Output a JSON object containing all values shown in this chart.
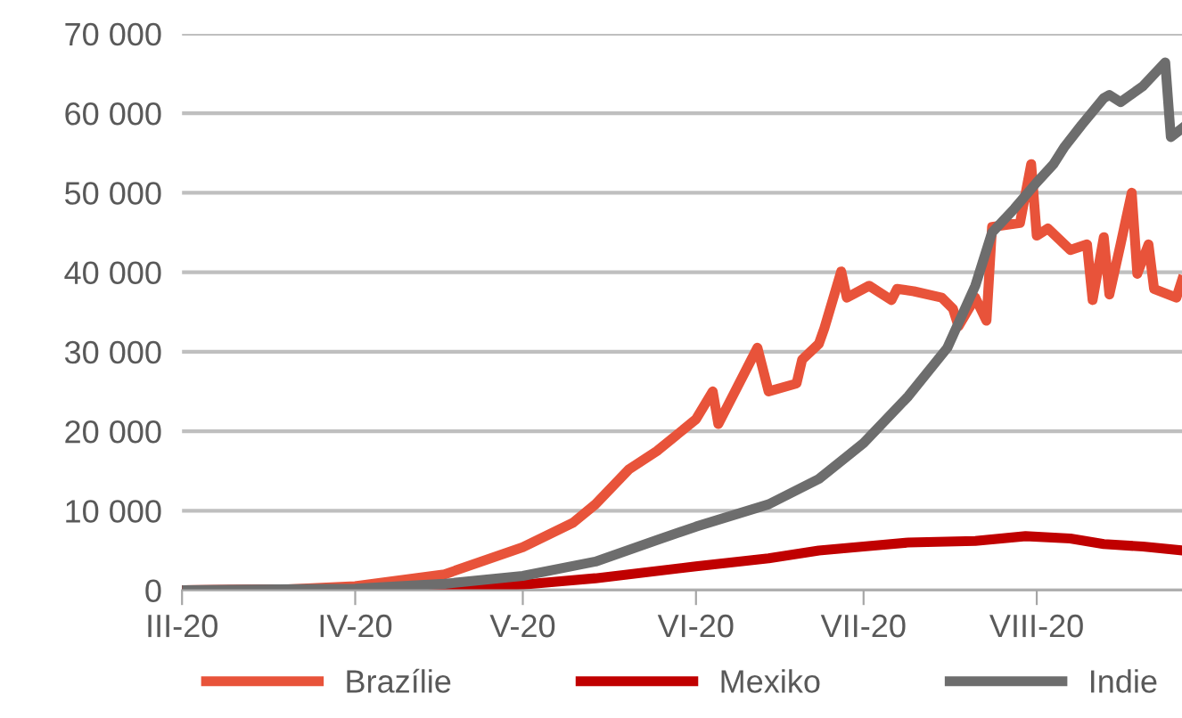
{
  "chart_data": {
    "type": "line",
    "ylim": [
      0,
      70000
    ],
    "yticks": [
      0,
      {
        "value": 10000,
        "label": "10 000"
      },
      {
        "value": 20000,
        "label": "20 000"
      },
      {
        "value": 30000,
        "label": "30 000"
      },
      {
        "value": 40000,
        "label": "40 000"
      },
      {
        "value": 50000,
        "label": "50 000"
      },
      {
        "value": 60000,
        "label": "60 000"
      },
      {
        "value": 70000,
        "label": "70 000"
      }
    ],
    "xlim": [
      "2020-03-01",
      "2020-08-27"
    ],
    "xticks": [
      {
        "value": "2020-03-01",
        "label": "III-20"
      },
      {
        "value": "2020-04-01",
        "label": "IV-20"
      },
      {
        "value": "2020-05-01",
        "label": "V-20"
      },
      {
        "value": "2020-06-01",
        "label": "VI-20"
      },
      {
        "value": "2020-07-01",
        "label": "VII-20"
      },
      {
        "value": "2020-08-01",
        "label": "VIII-20"
      }
    ],
    "grid": "y",
    "legend": "bottom",
    "marker": "none",
    "line_style": "solid",
    "series": [
      {
        "name": "Brazílie",
        "color": "#e8533a",
        "x": [
          "2020-03-01",
          "2020-03-20",
          "2020-04-01",
          "2020-04-17",
          "2020-05-01",
          "2020-05-10",
          "2020-05-14",
          "2020-05-20",
          "2020-05-25",
          "2020-06-01",
          "2020-06-04",
          "2020-06-05",
          "2020-06-12",
          "2020-06-14",
          "2020-06-19",
          "2020-06-20",
          "2020-06-23",
          "2020-06-24",
          "2020-06-27",
          "2020-06-28",
          "2020-07-02",
          "2020-07-06",
          "2020-07-07",
          "2020-07-10",
          "2020-07-15",
          "2020-07-17",
          "2020-07-18",
          "2020-07-21",
          "2020-07-23",
          "2020-07-24",
          "2020-07-29",
          "2020-07-31",
          "2020-08-01",
          "2020-08-03",
          "2020-08-07",
          "2020-08-10",
          "2020-08-11",
          "2020-08-13",
          "2020-08-14",
          "2020-08-16",
          "2020-08-18",
          "2020-08-19",
          "2020-08-21",
          "2020-08-22",
          "2020-08-26",
          "2020-08-27"
        ],
        "values": [
          0,
          100,
          500,
          2000,
          5400,
          8500,
          10800,
          15200,
          17500,
          21500,
          25000,
          20900,
          30500,
          25000,
          26000,
          29000,
          31000,
          33000,
          40100,
          36800,
          38300,
          36500,
          37900,
          37600,
          36800,
          35400,
          33200,
          36800,
          33900,
          45700,
          46200,
          53600,
          44600,
          45500,
          42800,
          43500,
          36500,
          44400,
          37200,
          43500,
          50000,
          39800,
          43500,
          37900,
          36800,
          39000
        ]
      },
      {
        "name": "Mexiko",
        "color": "#c00000",
        "x": [
          "2020-03-01",
          "2020-04-01",
          "2020-04-17",
          "2020-05-01",
          "2020-05-14",
          "2020-06-01",
          "2020-06-14",
          "2020-06-23",
          "2020-07-01",
          "2020-07-09",
          "2020-07-21",
          "2020-07-30",
          "2020-08-07",
          "2020-08-13",
          "2020-08-20",
          "2020-08-27"
        ],
        "values": [
          0,
          100,
          400,
          700,
          1500,
          3000,
          4000,
          5000,
          5500,
          6000,
          6200,
          6800,
          6500,
          5800,
          5500,
          5000
        ]
      },
      {
        "name": "Indie",
        "color": "#6d6d6d",
        "x": [
          "2020-03-01",
          "2020-04-01",
          "2020-04-17",
          "2020-05-01",
          "2020-05-14",
          "2020-05-25",
          "2020-06-01",
          "2020-06-14",
          "2020-06-23",
          "2020-07-01",
          "2020-07-09",
          "2020-07-16",
          "2020-07-21",
          "2020-07-24",
          "2020-07-28",
          "2020-08-01",
          "2020-08-04",
          "2020-08-06",
          "2020-08-09",
          "2020-08-13",
          "2020-08-14",
          "2020-08-16",
          "2020-08-20",
          "2020-08-24",
          "2020-08-25",
          "2020-08-27"
        ],
        "values": [
          0,
          200,
          800,
          1800,
          3600,
          6300,
          8000,
          10800,
          14000,
          18500,
          24400,
          30500,
          38300,
          45000,
          48000,
          51300,
          53600,
          55800,
          58500,
          61900,
          62300,
          61400,
          63400,
          66400,
          57000,
          58100
        ]
      }
    ]
  }
}
